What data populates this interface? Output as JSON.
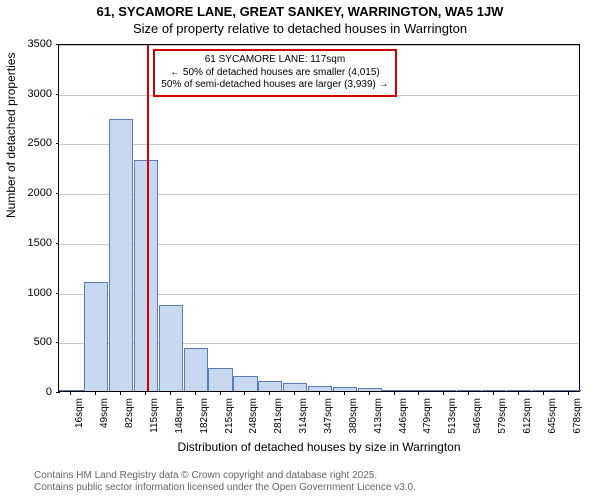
{
  "title": {
    "line1": "61, SYCAMORE LANE, GREAT SANKEY, WARRINGTON, WA5 1JW",
    "line2": "Size of property relative to detached houses in Warrington"
  },
  "chart": {
    "type": "histogram",
    "ylabel": "Number of detached properties",
    "xlabel": "Distribution of detached houses by size in Warrington",
    "ylim": [
      0,
      3500
    ],
    "ytick_step": 500,
    "ytick_labels": [
      "0",
      "500",
      "1000",
      "1500",
      "2000",
      "2500",
      "3000",
      "3500"
    ],
    "xticks": [
      "16sqm",
      "49sqm",
      "82sqm",
      "115sqm",
      "148sqm",
      "182sqm",
      "215sqm",
      "248sqm",
      "281sqm",
      "314sqm",
      "347sqm",
      "380sqm",
      "413sqm",
      "446sqm",
      "479sqm",
      "513sqm",
      "546sqm",
      "579sqm",
      "612sqm",
      "645sqm",
      "678sqm"
    ],
    "bar_values": [
      10,
      1100,
      2740,
      2320,
      870,
      430,
      230,
      150,
      100,
      80,
      55,
      45,
      35,
      15,
      8,
      6,
      5,
      4,
      3,
      3,
      2
    ],
    "bar_fill": "#c8d8f0",
    "bar_stroke": "#5b7bb4",
    "grid_color": "#b0b0b0",
    "background_color": "#ffffff",
    "axis_color": "#000000",
    "label_fontsize": 12,
    "tick_fontsize": 11,
    "marker_value": 117,
    "marker_color": "#d00000",
    "annotation": {
      "line1": "61 SYCAMORE LANE: 117sqm",
      "line2": "← 50% of detached houses are smaller (4,015)",
      "line3": "50% of semi-detached houses are larger (3,939) →"
    }
  },
  "credits": {
    "line1": "Contains HM Land Registry data © Crown copyright and database right 2025.",
    "line2": "Contains public sector information licensed under the Open Government Licence v3.0."
  }
}
